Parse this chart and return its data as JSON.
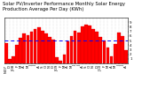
{
  "title": "Solar PV/Inverter Performance Monthly Solar Energy Production Average Per Day (KWh)",
  "bar_values": [
    4.5,
    0.9,
    1.6,
    4.0,
    5.5,
    6.5,
    6.2,
    7.0,
    7.5,
    7.8,
    7.2,
    6.5,
    5.8,
    5.2,
    1.3,
    0.6,
    2.0,
    4.8,
    6.0,
    7.2,
    6.8,
    8.0,
    8.5,
    8.2,
    7.5,
    7.0,
    5.8,
    5.0,
    3.5,
    1.6,
    4.2,
    6.8,
    6.0,
    2.9
  ],
  "bar_color": "#ff0000",
  "bar_edge_color": "#cc0000",
  "average_line": 5.0,
  "average_line_color": "#0000ff",
  "ylim": [
    0,
    10
  ],
  "yticks": [
    1,
    2,
    3,
    4,
    5,
    6,
    7,
    8,
    9
  ],
  "ytick_labels": [
    "1",
    "2",
    "3",
    "4",
    "5",
    "6",
    "7",
    "8",
    "9"
  ],
  "background_color": "#ffffff",
  "grid_color": "#aaaaaa",
  "title_fontsize": 3.8,
  "tick_fontsize": 2.8,
  "month_labels": [
    "N'07",
    "D",
    "J'08",
    "F",
    "M",
    "A",
    "M",
    "J",
    "J",
    "A",
    "S",
    "O",
    "N",
    "D",
    "J'09",
    "F",
    "M",
    "A",
    "M",
    "J",
    "J",
    "A",
    "S",
    "O",
    "N",
    "D",
    "J'10",
    "F",
    "M",
    "A",
    "M",
    "J",
    "J",
    "A"
  ]
}
